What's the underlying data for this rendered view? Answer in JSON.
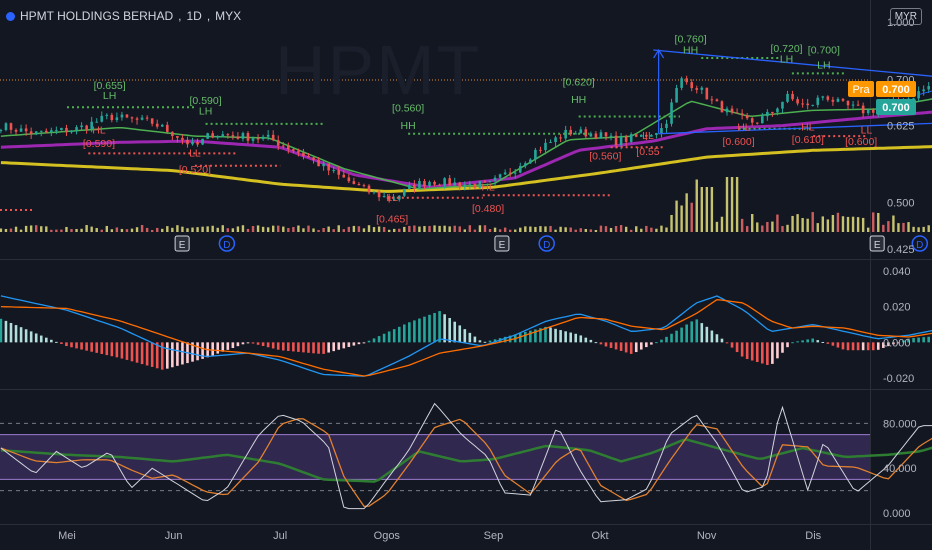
{
  "header": {
    "symbol": "HPMT HOLDINGS BERHAD",
    "interval": "1D",
    "exchange": "MYX",
    "currency": "MYR"
  },
  "watermark": "HPMT",
  "price_tags": {
    "label": "Pra",
    "pre_value": "0.700",
    "last_value": "0.700",
    "top_value": "1.000"
  },
  "colors": {
    "background": "#131722",
    "up": "#26a69a",
    "down": "#ef5350",
    "ma_fast": "#4caf50",
    "ma_mid": "#9c27b0",
    "ma_slow": "#d4c020",
    "macd": "#2196f3",
    "signal": "#ff6d00",
    "rsi": "#2e7d32",
    "stoch_k": "#d1d4dc",
    "stoch_d": "#e08030",
    "trendline": "#2962ff"
  },
  "events": [
    {
      "type": "E",
      "month_idx": 1.08
    },
    {
      "type": "D",
      "month_idx": 1.5
    },
    {
      "type": "E",
      "month_idx": 4.08
    },
    {
      "type": "D",
      "month_idx": 4.5
    },
    {
      "type": "E",
      "month_idx": 7.6
    },
    {
      "type": "D",
      "month_idx": 8.0
    }
  ],
  "chart_data": [
    {
      "type": "candlestick",
      "title": "HPMT HOLDINGS BERHAD, 1D, MYX",
      "y_ticks": [
        "0.425",
        "0.500",
        "0.625",
        "0.700"
      ],
      "ylim": [
        0.41,
        0.8
      ],
      "x_ticks": [
        "Mei",
        "Jun",
        "Jul",
        "Ogos",
        "Sep",
        "Okt",
        "Nov",
        "Dis"
      ],
      "annotations": [
        {
          "text": "[0.655]",
          "x": 0.4,
          "y": 0.685,
          "color": "#66bb6a"
        },
        {
          "text": "LH",
          "x": 0.4,
          "y": 0.668,
          "color": "#66bb6a"
        },
        {
          "text": "HL",
          "x": 0.3,
          "y": 0.612,
          "color": "#ef5350"
        },
        {
          "text": "[0.590]",
          "x": 0.3,
          "y": 0.59,
          "color": "#ef5350"
        },
        {
          "text": "[0.590]",
          "x": 1.3,
          "y": 0.66,
          "color": "#66bb6a"
        },
        {
          "text": "LH",
          "x": 1.3,
          "y": 0.643,
          "color": "#66bb6a"
        },
        {
          "text": "LL",
          "x": 1.2,
          "y": 0.575,
          "color": "#ef5350"
        },
        {
          "text": "[0.520]",
          "x": 1.2,
          "y": 0.548,
          "color": "#ef5350"
        },
        {
          "text": "[0.560]",
          "x": 3.2,
          "y": 0.648,
          "color": "#66bb6a"
        },
        {
          "text": "HH",
          "x": 3.2,
          "y": 0.62,
          "color": "#66bb6a"
        },
        {
          "text": "LL",
          "x": 3.05,
          "y": 0.503,
          "color": "#ef5350"
        },
        {
          "text": "[0.465]",
          "x": 3.05,
          "y": 0.468,
          "color": "#ef5350"
        },
        {
          "text": "HL",
          "x": 3.95,
          "y": 0.52,
          "color": "#ef5350"
        },
        {
          "text": "[0.480]",
          "x": 3.95,
          "y": 0.485,
          "color": "#ef5350"
        },
        {
          "text": "[0.620]",
          "x": 4.8,
          "y": 0.69,
          "color": "#66bb6a"
        },
        {
          "text": "HH",
          "x": 4.8,
          "y": 0.662,
          "color": "#66bb6a"
        },
        {
          "text": "LL",
          "x": 5.45,
          "y": 0.603,
          "color": "#ef5350"
        },
        {
          "text": "[0.55",
          "x": 5.45,
          "y": 0.577,
          "color": "#ef5350"
        },
        {
          "text": "[0.560]",
          "x": 5.05,
          "y": 0.57,
          "color": "#ef5350"
        },
        {
          "text": "[0.760]",
          "x": 5.85,
          "y": 0.76,
          "color": "#66bb6a"
        },
        {
          "text": "HH",
          "x": 5.85,
          "y": 0.742,
          "color": "#66bb6a"
        },
        {
          "text": "HL",
          "x": 6.35,
          "y": 0.617,
          "color": "#ef5350"
        },
        {
          "text": "[0.600]",
          "x": 6.3,
          "y": 0.594,
          "color": "#ef5350"
        },
        {
          "text": "[0.720]",
          "x": 6.75,
          "y": 0.745,
          "color": "#66bb6a"
        },
        {
          "text": "LH",
          "x": 6.75,
          "y": 0.728,
          "color": "#66bb6a"
        },
        {
          "text": "HL",
          "x": 6.95,
          "y": 0.617,
          "color": "#ef5350"
        },
        {
          "text": "[0.610]",
          "x": 6.95,
          "y": 0.597,
          "color": "#ef5350"
        },
        {
          "text": "[0.700]",
          "x": 7.1,
          "y": 0.742,
          "color": "#66bb6a"
        },
        {
          "text": "LH",
          "x": 7.1,
          "y": 0.718,
          "color": "#66bb6a"
        },
        {
          "text": "LL",
          "x": 7.5,
          "y": 0.612,
          "color": "#ef5350"
        },
        {
          "text": "[0.600]",
          "x": 7.45,
          "y": 0.594,
          "color": "#ef5350"
        }
      ]
    },
    {
      "type": "bar",
      "title": "",
      "values_description": "volume"
    },
    {
      "type": "line",
      "title": "",
      "y_ticks": [
        "0.040",
        "0.020",
        "0.000",
        "-0.020"
      ],
      "ylim": [
        -0.025,
        0.045
      ]
    },
    {
      "type": "line",
      "title": "",
      "y_ticks": [
        "80.000",
        "40.000",
        "0.000"
      ],
      "ylim": [
        -8,
        108
      ]
    }
  ]
}
